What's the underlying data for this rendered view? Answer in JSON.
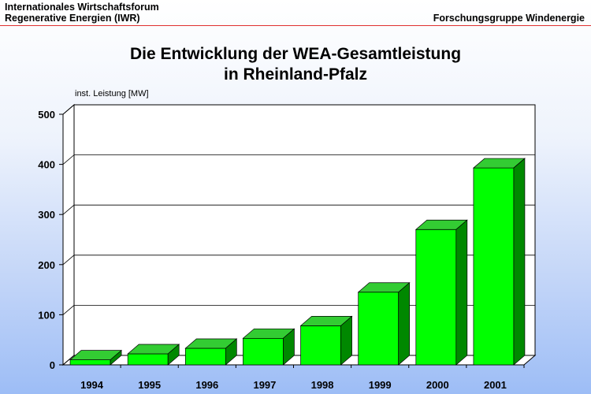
{
  "header": {
    "org_line1": "Internationales Wirtschaftsforum",
    "org_line2": "Regenerative Energien (IWR)",
    "group": "Forschungsgruppe Windenergie"
  },
  "colors": {
    "bar_front": "#00ff00",
    "bar_top": "#33cc33",
    "bar_side": "#008800",
    "header_rule": "#e03030"
  },
  "chart_data": {
    "type": "bar",
    "title_line1": "Die Entwicklung der WEA-Gesamtleistung",
    "title_line2": "in Rheinland-Pfalz",
    "ylabel": "inst. Leistung [MW]",
    "categories": [
      "1994",
      "1995",
      "1996",
      "1997",
      "1998",
      "1999",
      "2000",
      "2001"
    ],
    "values": [
      10,
      22,
      33,
      53,
      78,
      145,
      270,
      393
    ],
    "ylim": [
      0,
      500
    ],
    "yticks": [
      "0",
      "100",
      "200",
      "300",
      "400",
      "500"
    ],
    "grid": true,
    "legend": "none"
  }
}
